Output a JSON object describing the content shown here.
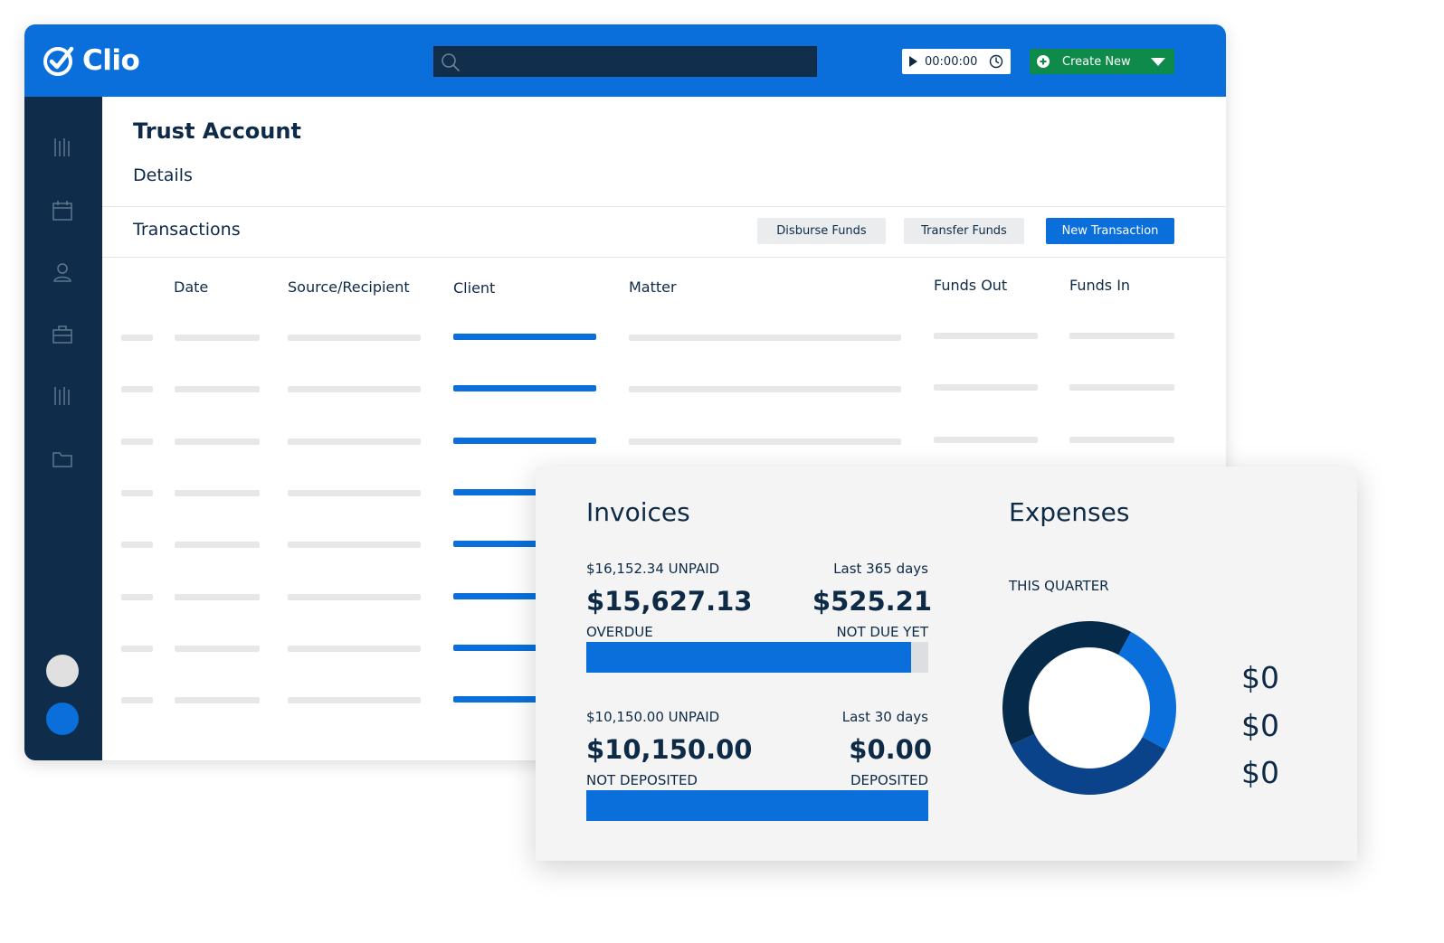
{
  "app": {
    "logo_text": "Clio",
    "timer": "00:00:00",
    "create_new_label": "Create New",
    "search_placeholder": ""
  },
  "colors": {
    "topbar": "#0a6fdb",
    "sidebar": "#0f2d4b",
    "create_new": "#0e8a4a",
    "accent": "#0a6fdb",
    "donut_light": "#0a6fdb",
    "donut_mid": "#0b438a",
    "donut_dark": "#062a4a"
  },
  "sidebar": {
    "icons": [
      "bars-icon",
      "calendar-icon",
      "user-icon",
      "briefcase-icon",
      "bars-icon",
      "folder-icon"
    ]
  },
  "page": {
    "title": "Trust Account",
    "details_label": "Details",
    "transactions_label": "Transactions",
    "buttons": {
      "disburse": "Disburse Funds",
      "transfer": "Transfer Funds",
      "new_transaction": "New Transaction"
    },
    "columns": [
      "Date",
      "Source/Recipient",
      "Client",
      "Matter",
      "Funds Out",
      "Funds In"
    ]
  },
  "invoices": {
    "title": "Invoices",
    "block1": {
      "unpaid": "$16,152.34 UNPAID",
      "period": "Last 365 days",
      "overdue_amount": "$15,627.13",
      "overdue_label": "OVERDUE",
      "not_due_amount": "$525.21",
      "not_due_label": "NOT DUE YET",
      "fill_fraction": 0.95
    },
    "block2": {
      "unpaid": "$10,150.00 UNPAID",
      "period": "Last 30 days",
      "not_deposited_amount": "$10,150.00",
      "not_deposited_label": "NOT DEPOSITED",
      "deposited_amount": "$0.00",
      "deposited_label": "DEPOSITED",
      "fill_fraction": 1.0
    }
  },
  "expenses": {
    "title": "Expenses",
    "period_label": "THIS QUARTER",
    "values": [
      "$0",
      "$0",
      "$0"
    ],
    "donut_fractions": [
      0.25,
      0.35,
      0.4
    ]
  }
}
